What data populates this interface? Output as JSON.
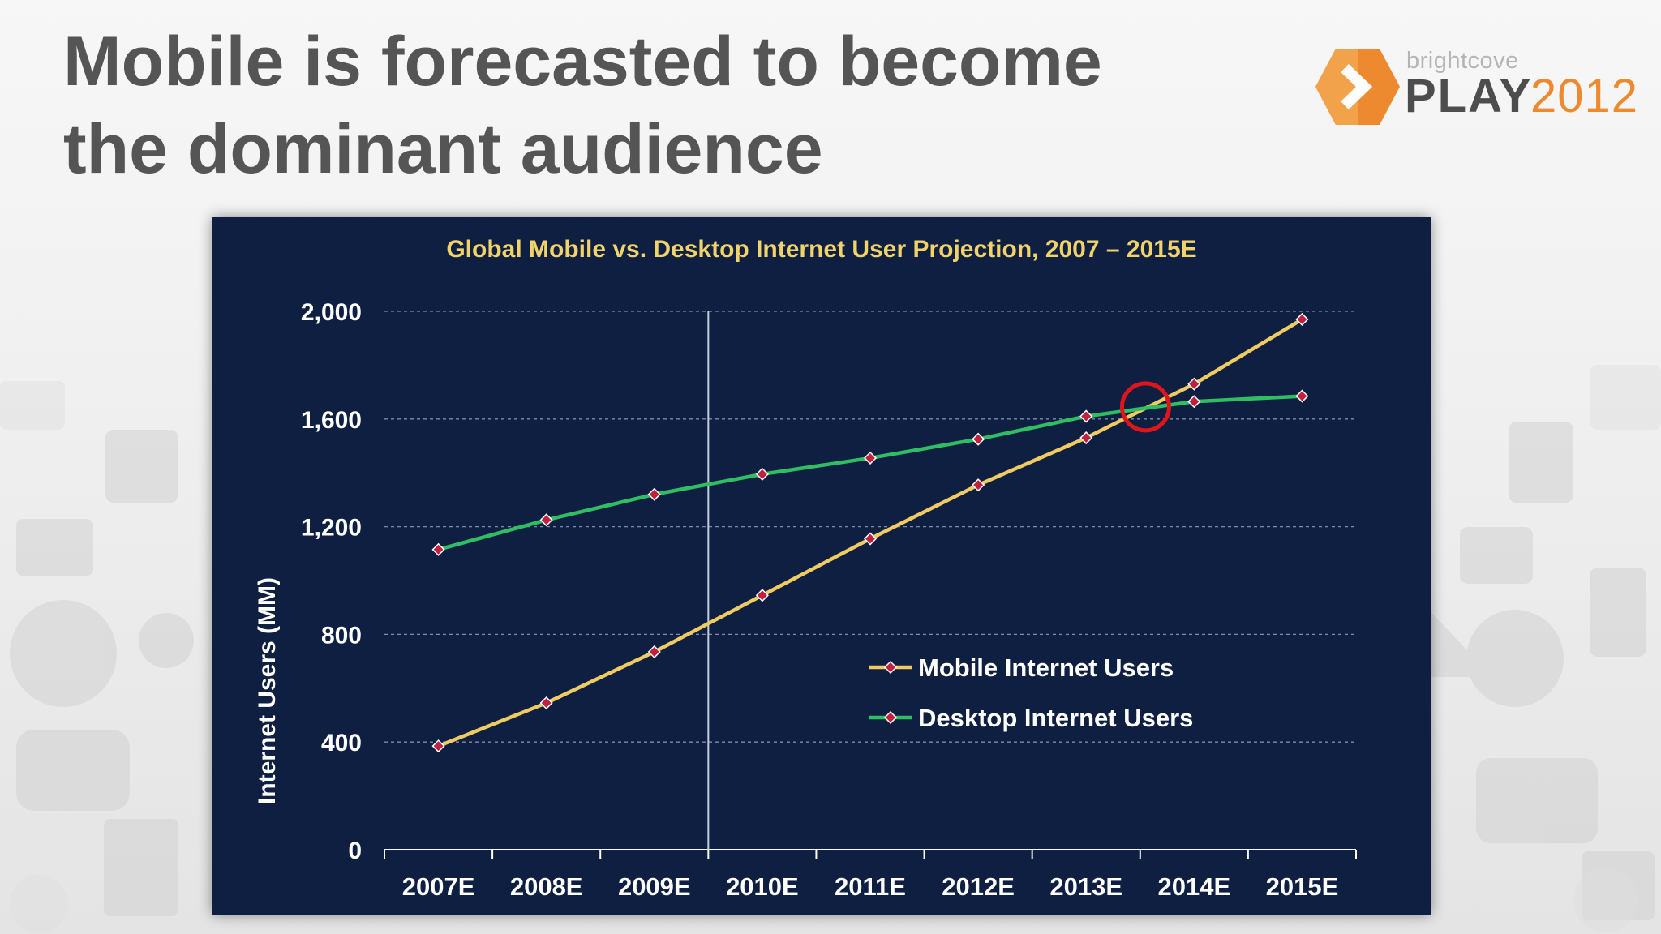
{
  "slide": {
    "title_line1": "Mobile is forecasted to become",
    "title_line2": "the dominant audience"
  },
  "logo": {
    "brand": "brightcove",
    "product": "PLAY",
    "year": "2012"
  },
  "colors": {
    "title_text": "#555555",
    "chart_background": "#0e1f42",
    "chart_title": "#f2d36a",
    "mobile_line": "#f0cb62",
    "desktop_line": "#2fbe62",
    "marker": "#c1203e",
    "highlight_circle": "#e0151b",
    "grid": "#7f8ca5",
    "logo_orange": "#ed8a2f"
  },
  "chart_data": {
    "type": "line",
    "title": "Global Mobile vs. Desktop Internet User Projection, 2007 – 2015E",
    "xlabel": "",
    "ylabel": "Internet Users (MM)",
    "categories": [
      "2007E",
      "2008E",
      "2009E",
      "2010E",
      "2011E",
      "2012E",
      "2013E",
      "2014E",
      "2015E"
    ],
    "series": [
      {
        "name": "Mobile Internet Users",
        "color": "#f0cb62",
        "values": [
          385,
          545,
          735,
          945,
          1155,
          1355,
          1530,
          1730,
          1970
        ]
      },
      {
        "name": "Desktop Internet Users",
        "color": "#2fbe62",
        "values": [
          1115,
          1225,
          1320,
          1395,
          1455,
          1525,
          1610,
          1665,
          1685
        ]
      }
    ],
    "ylim": [
      0,
      2000
    ],
    "y_ticks": [
      0,
      400,
      800,
      1200,
      1600,
      2000
    ],
    "y_tick_labels": [
      "0",
      "400",
      "800",
      "1,200",
      "1,600",
      "2,000"
    ],
    "grid": "horizontal dashed",
    "legend_position": "right-center",
    "annotations": [
      {
        "type": "vertical-line",
        "x": 2.5
      },
      {
        "type": "circle",
        "x": 6.55,
        "y": 1645
      }
    ]
  }
}
